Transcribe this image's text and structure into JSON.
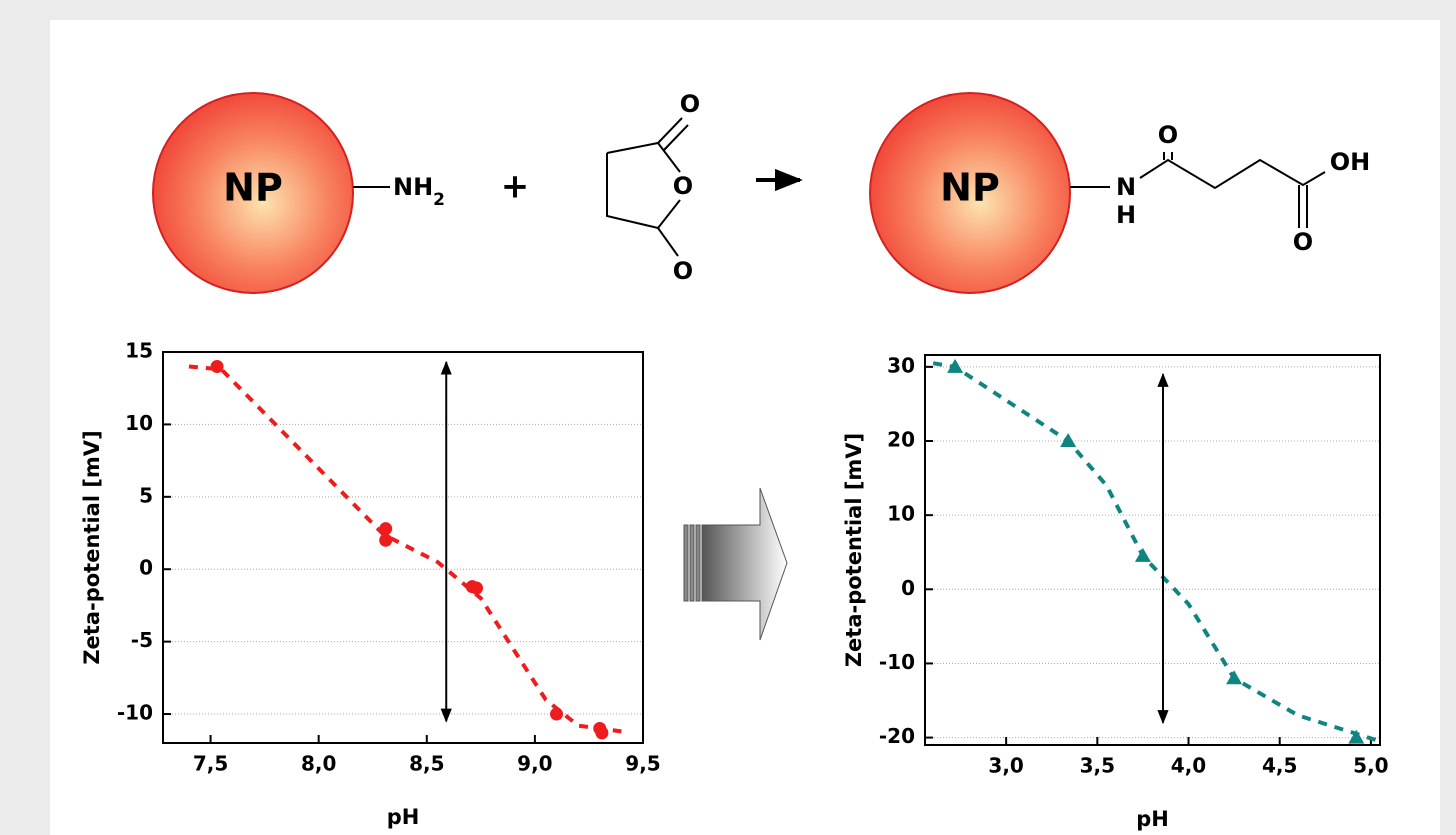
{
  "scheme": {
    "reactant_particle": "NP",
    "amine": "NH",
    "amine_subscript": "2",
    "plus": "+",
    "anhydride_oxygens": [
      "O",
      "O",
      "O"
    ],
    "product_particle": "NP",
    "amide_n": "N",
    "amide_h": "H",
    "amide_o": "O",
    "acid_oh": "OH",
    "acid_o": "O"
  },
  "chart_data": [
    {
      "type": "scatter",
      "xlabel": "pH",
      "ylabel": "Zeta-potential [mV]",
      "color": "#ee1c1c",
      "marker": "circle",
      "x": [
        7.53,
        8.31,
        8.31,
        8.71,
        8.73,
        9.1,
        9.3,
        9.31
      ],
      "values": [
        14,
        2.8,
        2.0,
        -1.2,
        -1.3,
        -10,
        -11,
        -11.3
      ],
      "fit": {
        "x": [
          7.4,
          7.55,
          8.3,
          8.55,
          8.75,
          9.05,
          9.2,
          9.4
        ],
        "values": [
          14,
          13.8,
          2.4,
          0.5,
          -2,
          -9,
          -10.8,
          -11.2
        ]
      },
      "vline": {
        "x": 8.59,
        "y1": -10.5,
        "y2": 14.3
      },
      "xlim": [
        7.28,
        9.5
      ],
      "ylim": [
        -12,
        15
      ],
      "xticks": [
        {
          "value": 7.5,
          "label": "7,5"
        },
        {
          "value": 8.0,
          "label": "8,0"
        },
        {
          "value": 8.5,
          "label": "8,5"
        },
        {
          "value": 9.0,
          "label": "9,0"
        },
        {
          "value": 9.5,
          "label": "9,5"
        }
      ],
      "yticks": [
        15,
        10,
        5,
        0,
        -5,
        -10
      ],
      "grid": true
    },
    {
      "type": "scatter",
      "xlabel": "pH",
      "ylabel": "Zeta-potential [mV]",
      "color": "#0e8580",
      "marker": "triangle",
      "x": [
        2.72,
        3.34,
        3.75,
        4.25,
        4.92
      ],
      "values": [
        30,
        20,
        4.5,
        -12,
        -20
      ],
      "fit": {
        "x": [
          2.6,
          2.72,
          3.34,
          3.55,
          3.75,
          4.0,
          4.25,
          4.6,
          5.05
        ],
        "values": [
          30.5,
          30,
          20,
          14,
          4.5,
          -2,
          -12,
          -17,
          -20.5
        ]
      },
      "vline": {
        "x": 3.86,
        "y1": -18,
        "y2": 29
      },
      "xlim": [
        2.555,
        5.05
      ],
      "ylim": [
        -21,
        31.6
      ],
      "xticks": [
        {
          "value": 3.0,
          "label": "3,0"
        },
        {
          "value": 3.5,
          "label": "3,5"
        },
        {
          "value": 4.0,
          "label": "4,0"
        },
        {
          "value": 4.5,
          "label": "4,5"
        },
        {
          "value": 5.0,
          "label": "5,0"
        }
      ],
      "yticks": [
        30,
        20,
        10,
        0,
        -10,
        -20
      ],
      "grid": true
    }
  ]
}
